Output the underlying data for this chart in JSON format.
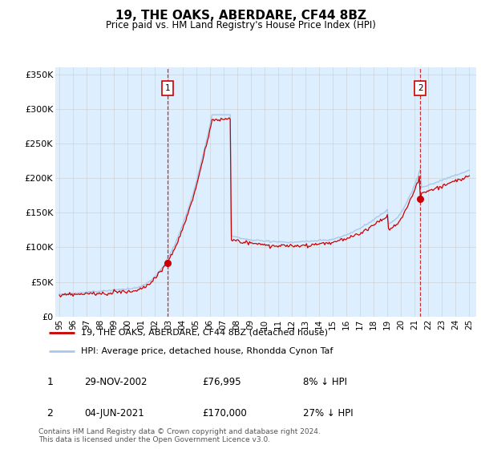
{
  "title": "19, THE OAKS, ABERDARE, CF44 8BZ",
  "subtitle": "Price paid vs. HM Land Registry's House Price Index (HPI)",
  "ylim": [
    0,
    360000
  ],
  "yticks": [
    0,
    50000,
    100000,
    150000,
    200000,
    250000,
    300000,
    350000
  ],
  "ytick_labels": [
    "£0",
    "£50K",
    "£100K",
    "£150K",
    "£200K",
    "£250K",
    "£300K",
    "£350K"
  ],
  "hpi_color": "#aac8e8",
  "price_color": "#cc0000",
  "vline_color": "#cc0000",
  "grid_color": "#cccccc",
  "bg_color": "#ddeeff",
  "legend_label_price": "19, THE OAKS, ABERDARE, CF44 8BZ (detached house)",
  "legend_label_hpi": "HPI: Average price, detached house, Rhondda Cynon Taf",
  "annotation1_date": "29-NOV-2002",
  "annotation1_price": "£76,995",
  "annotation1_pct": "8% ↓ HPI",
  "annotation2_date": "04-JUN-2021",
  "annotation2_price": "£170,000",
  "annotation2_pct": "27% ↓ HPI",
  "footer": "Contains HM Land Registry data © Crown copyright and database right 2024.\nThis data is licensed under the Open Government Licence v3.0.",
  "sale1_year": 2002.91,
  "sale1_value": 76995,
  "sale2_year": 2021.42,
  "sale2_value": 170000,
  "xmin": 1994.7,
  "xmax": 2025.5
}
